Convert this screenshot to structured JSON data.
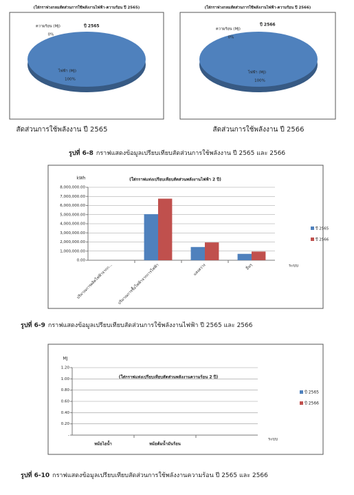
{
  "chart_data": [
    {
      "type": "pie",
      "title": "(ใส่กราฟวงกลมสัดส่วนการใช้พลังงานไฟฟ้า-ความร้อน ปี 2565)",
      "chart_title": "ปี 2565",
      "caption": "สัดส่วนการใช้พลังงาน ปี 2565",
      "categories": [
        "ความร้อน (MJ)",
        "ไฟฟ้า (MJ)"
      ],
      "values": [
        0,
        100
      ],
      "value_labels": [
        "0%",
        "100%"
      ],
      "colors": [
        "#c0504d",
        "#4f81bd"
      ]
    },
    {
      "type": "pie",
      "title": "(ใส่กราฟวงกลมสัดส่วนการใช้พลังงานไฟฟ้า-ความร้อน ปี 2566)",
      "chart_title": "ปี 2566",
      "caption": "สัดส่วนการใช้พลังงาน ปี 2566",
      "categories": [
        "ความร้อน (MJ)",
        "ไฟฟ้า (MJ)"
      ],
      "values": [
        0,
        100
      ],
      "value_labels": [
        "0%",
        "100%"
      ],
      "colors": [
        "#c0504d",
        "#4f81bd"
      ]
    },
    {
      "type": "bar",
      "title": "(ใส่กราฟแท่งเปรียบเทียบสัดส่วนพลังงานไฟฟ้า 2 ปี)",
      "y_label": "kWh",
      "x_label": "ระบบ",
      "categories": [
        "ปริมาณการผลิตไฟฟ้าจากก...",
        "ปริมาณการซื้อไฟฟ้าจากการไฟฟ้า",
        "แสงสว่าง",
        "อื่นๆ"
      ],
      "series": [
        {
          "name": "ปี 2565",
          "color": "#4f81bd",
          "values": [
            0,
            5050000,
            1450000,
            700000
          ]
        },
        {
          "name": "ปี 2566",
          "color": "#c0504d",
          "values": [
            0,
            6750000,
            1950000,
            950000
          ]
        }
      ],
      "ylim": [
        0,
        8000000
      ],
      "yticks": [
        {
          "value": 0,
          "label": "0.00"
        },
        {
          "value": 1000000,
          "label": "1,000,000.00"
        },
        {
          "value": 2000000,
          "label": "2,000,000.00"
        },
        {
          "value": 3000000,
          "label": "3,000,000.00"
        },
        {
          "value": 4000000,
          "label": "4,000,000.00"
        },
        {
          "value": 5000000,
          "label": "5,000,000.00"
        },
        {
          "value": 6000000,
          "label": "6,000,000.00"
        },
        {
          "value": 7000000,
          "label": "7,000,000.00"
        },
        {
          "value": 8000000,
          "label": "8,000,000.00"
        }
      ],
      "grid": true,
      "legend": "right"
    },
    {
      "type": "bar",
      "title": "(ใส่กราฟแท่งเปรียบเทียบสัดส่วนพลังงานความร้อน 2 ปี)",
      "y_label": "MJ",
      "x_label": "ระบบ",
      "categories": [
        "หม้อไอน้ำ",
        "หม้อต้มน้ำมันร้อน",
        null
      ],
      "series": [
        {
          "name": "ปี 2565",
          "color": "#4f81bd",
          "values": [
            0,
            0,
            0
          ]
        },
        {
          "name": "ปี 2566",
          "color": "#c0504d",
          "values": [
            0,
            0,
            0
          ]
        }
      ],
      "ylim": [
        0,
        1.2
      ],
      "yticks": [
        {
          "value": 0,
          "label": "-"
        },
        {
          "value": 0.2,
          "label": "0.20"
        },
        {
          "value": 0.4,
          "label": "0.40"
        },
        {
          "value": 0.6,
          "label": "0.60"
        },
        {
          "value": 0.8,
          "label": "0.80"
        },
        {
          "value": 1,
          "label": "1.00"
        },
        {
          "value": 1.2,
          "label": "1.20"
        }
      ],
      "grid": true,
      "legend": "right"
    }
  ],
  "figure_captions": [
    {
      "label": "รูปที่ 6-8",
      "text": "กราฟแสดงข้อมูลเปรียบเทียบสัดส่วนการใช้พลังงาน ปี 2565 และ 2566"
    },
    {
      "label": "รูปที่ 6-9",
      "text": "กราฟแสดงข้อมูลเปรียบเทียบสัดส่วนการใช้พลังงานไฟฟ้า ปี 2565 และ 2566"
    },
    {
      "label": "รูปที่ 6-10",
      "text": "กราฟแสดงข้อมูลเปรียบเทียบสัดส่วนการใช้พลังงานความร้อน ปี 2565 และ 2566"
    }
  ]
}
